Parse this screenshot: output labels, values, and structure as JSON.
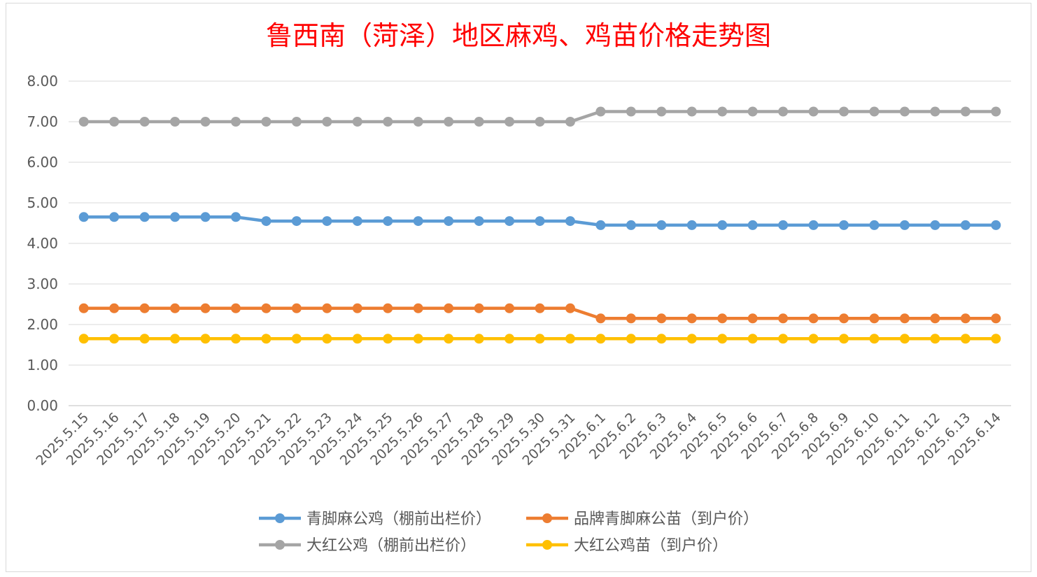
{
  "chart_data": {
    "type": "line",
    "title": "鲁西南（菏泽）地区麻鸡、鸡苗价格走势图",
    "xlabel": "",
    "ylabel": "",
    "ylim": [
      0,
      8
    ],
    "yticks": [
      "0.00",
      "1.00",
      "2.00",
      "3.00",
      "4.00",
      "5.00",
      "6.00",
      "7.00",
      "8.00"
    ],
    "grid": true,
    "legend_position": "bottom",
    "categories": [
      "2025.5.15",
      "2025.5.16",
      "2025.5.17",
      "2025.5.18",
      "2025.5.19",
      "2025.5.20",
      "2025.5.21",
      "2025.5.22",
      "2025.5.23",
      "2025.5.24",
      "2025.5.25",
      "2025.5.26",
      "2025.5.27",
      "2025.5.28",
      "2025.5.29",
      "2025.5.30",
      "2025.5.31",
      "2025.6.1",
      "2025.6.2",
      "2025.6.3",
      "2025.6.4",
      "2025.6.5",
      "2025.6.6",
      "2025.6.7",
      "2025.6.8",
      "2025.6.9",
      "2025.6.10",
      "2025.6.11",
      "2025.6.12",
      "2025.6.13",
      "2025.6.14"
    ],
    "series": [
      {
        "name": "青脚麻公鸡（棚前出栏价）",
        "color": "#5B9BD5",
        "values": [
          4.65,
          4.65,
          4.65,
          4.65,
          4.65,
          4.65,
          4.55,
          4.55,
          4.55,
          4.55,
          4.55,
          4.55,
          4.55,
          4.55,
          4.55,
          4.55,
          4.55,
          4.45,
          4.45,
          4.45,
          4.45,
          4.45,
          4.45,
          4.45,
          4.45,
          4.45,
          4.45,
          4.45,
          4.45,
          4.45,
          4.45
        ]
      },
      {
        "name": "品牌青脚麻公苗（到户价）",
        "color": "#ED7D31",
        "values": [
          2.4,
          2.4,
          2.4,
          2.4,
          2.4,
          2.4,
          2.4,
          2.4,
          2.4,
          2.4,
          2.4,
          2.4,
          2.4,
          2.4,
          2.4,
          2.4,
          2.4,
          2.15,
          2.15,
          2.15,
          2.15,
          2.15,
          2.15,
          2.15,
          2.15,
          2.15,
          2.15,
          2.15,
          2.15,
          2.15,
          2.15
        ]
      },
      {
        "name": "大红公鸡（棚前出栏价）",
        "color": "#A5A5A5",
        "values": [
          7.0,
          7.0,
          7.0,
          7.0,
          7.0,
          7.0,
          7.0,
          7.0,
          7.0,
          7.0,
          7.0,
          7.0,
          7.0,
          7.0,
          7.0,
          7.0,
          7.0,
          7.25,
          7.25,
          7.25,
          7.25,
          7.25,
          7.25,
          7.25,
          7.25,
          7.25,
          7.25,
          7.25,
          7.25,
          7.25,
          7.25
        ]
      },
      {
        "name": "大红公鸡苗（到户价）",
        "color": "#FFC000",
        "values": [
          1.65,
          1.65,
          1.65,
          1.65,
          1.65,
          1.65,
          1.65,
          1.65,
          1.65,
          1.65,
          1.65,
          1.65,
          1.65,
          1.65,
          1.65,
          1.65,
          1.65,
          1.65,
          1.65,
          1.65,
          1.65,
          1.65,
          1.65,
          1.65,
          1.65,
          1.65,
          1.65,
          1.65,
          1.65,
          1.65,
          1.65
        ]
      }
    ],
    "title_color": "#FF0000",
    "axis_text_color": "#595959",
    "gridline_color": "#D9D9D9"
  }
}
